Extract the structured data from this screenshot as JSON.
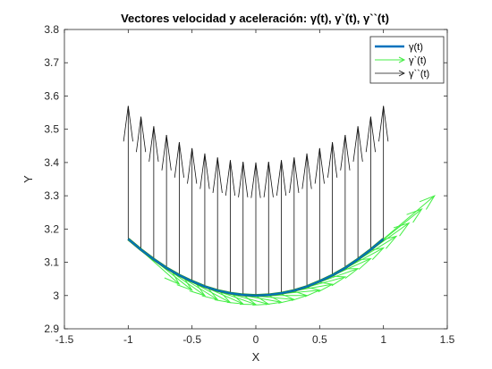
{
  "figure": {
    "title": "Vectores velocidad y aceleración: γ(t), γ`(t), γ``(t)"
  },
  "chart_data": {
    "type": "line",
    "title": "Vectores velocidad y aceleración: γ(t), γ`(t), γ``(t)",
    "xlabel": "X",
    "ylabel": "Y",
    "xlim": [
      -1.5,
      1.5
    ],
    "ylim": [
      2.9,
      3.8
    ],
    "xticks": [
      -1.5,
      -1,
      -0.5,
      0,
      0.5,
      1,
      1.5
    ],
    "xtick_labels": [
      "-1.5",
      "-1",
      "-0.5",
      "0",
      "0.5",
      "1",
      "1.5"
    ],
    "yticks": [
      2.9,
      3.0,
      3.1,
      3.2,
      3.3,
      3.4,
      3.5,
      3.6,
      3.7,
      3.8
    ],
    "ytick_labels": [
      "2.9",
      "3",
      "3.1",
      "3.2",
      "3.3",
      "3.4",
      "3.5",
      "3.6",
      "3.7",
      "3.8"
    ],
    "grid": false,
    "legend_position": "top-right",
    "colors": {
      "curve": "#0072bd",
      "velocity": "#44ee44",
      "velocity_curve": "#2e8b2e",
      "acceleration": "#111111",
      "axes": "#262626"
    },
    "series": [
      {
        "name": "γ(t)",
        "kind": "curve",
        "x": [
          -1,
          -0.9,
          -0.8,
          -0.7,
          -0.6,
          -0.5,
          -0.4,
          -0.3,
          -0.2,
          -0.1,
          0,
          0.1,
          0.2,
          0.3,
          0.4,
          0.5,
          0.6,
          0.7,
          0.8,
          0.9,
          1
        ],
        "y": [
          3.17,
          3.138,
          3.109,
          3.083,
          3.061,
          3.043,
          3.027,
          3.015,
          3.007,
          3.002,
          3.0,
          3.002,
          3.007,
          3.015,
          3.027,
          3.043,
          3.061,
          3.083,
          3.109,
          3.138,
          3.17
        ]
      },
      {
        "name": "γ`(t)",
        "kind": "vectors",
        "x": [
          -1,
          -0.9,
          -0.8,
          -0.7,
          -0.6,
          -0.5,
          -0.4,
          -0.3,
          -0.2,
          -0.1,
          0,
          0.1,
          0.2,
          0.3,
          0.4,
          0.5,
          0.6,
          0.7,
          0.8,
          0.9,
          1
        ],
        "y": [
          3.17,
          3.138,
          3.109,
          3.083,
          3.061,
          3.043,
          3.027,
          3.015,
          3.007,
          3.002,
          3.0,
          3.002,
          3.007,
          3.015,
          3.027,
          3.043,
          3.061,
          3.083,
          3.109,
          3.138,
          3.17
        ],
        "u": [
          0.4,
          0.4,
          0.4,
          0.4,
          0.4,
          0.4,
          0.4,
          0.4,
          0.4,
          0.4,
          0.4,
          0.4,
          0.4,
          0.4,
          0.4,
          0.4,
          0.4,
          0.4,
          0.4,
          0.4,
          0.4
        ],
        "v": [
          -0.136,
          -0.122,
          -0.109,
          -0.095,
          -0.082,
          -0.068,
          -0.054,
          -0.041,
          -0.027,
          -0.014,
          0.0,
          0.014,
          0.027,
          0.041,
          0.054,
          0.068,
          0.082,
          0.095,
          0.109,
          0.122,
          0.13
        ]
      },
      {
        "name": "γ``(t)",
        "kind": "vectors",
        "x": [
          -1,
          -0.9,
          -0.8,
          -0.7,
          -0.6,
          -0.5,
          -0.4,
          -0.3,
          -0.2,
          -0.1,
          0,
          0.1,
          0.2,
          0.3,
          0.4,
          0.5,
          0.6,
          0.7,
          0.8,
          0.9,
          1
        ],
        "y": [
          3.17,
          3.138,
          3.109,
          3.083,
          3.061,
          3.043,
          3.027,
          3.015,
          3.007,
          3.002,
          3.0,
          3.002,
          3.007,
          3.015,
          3.027,
          3.043,
          3.061,
          3.083,
          3.109,
          3.138,
          3.17
        ],
        "u": [
          0,
          0,
          0,
          0,
          0,
          0,
          0,
          0,
          0,
          0,
          0,
          0,
          0,
          0,
          0,
          0,
          0,
          0,
          0,
          0,
          0
        ],
        "v": [
          0.4,
          0.4,
          0.4,
          0.4,
          0.4,
          0.4,
          0.4,
          0.4,
          0.4,
          0.4,
          0.4,
          0.4,
          0.4,
          0.4,
          0.4,
          0.4,
          0.4,
          0.4,
          0.4,
          0.4,
          0.4
        ]
      }
    ]
  }
}
